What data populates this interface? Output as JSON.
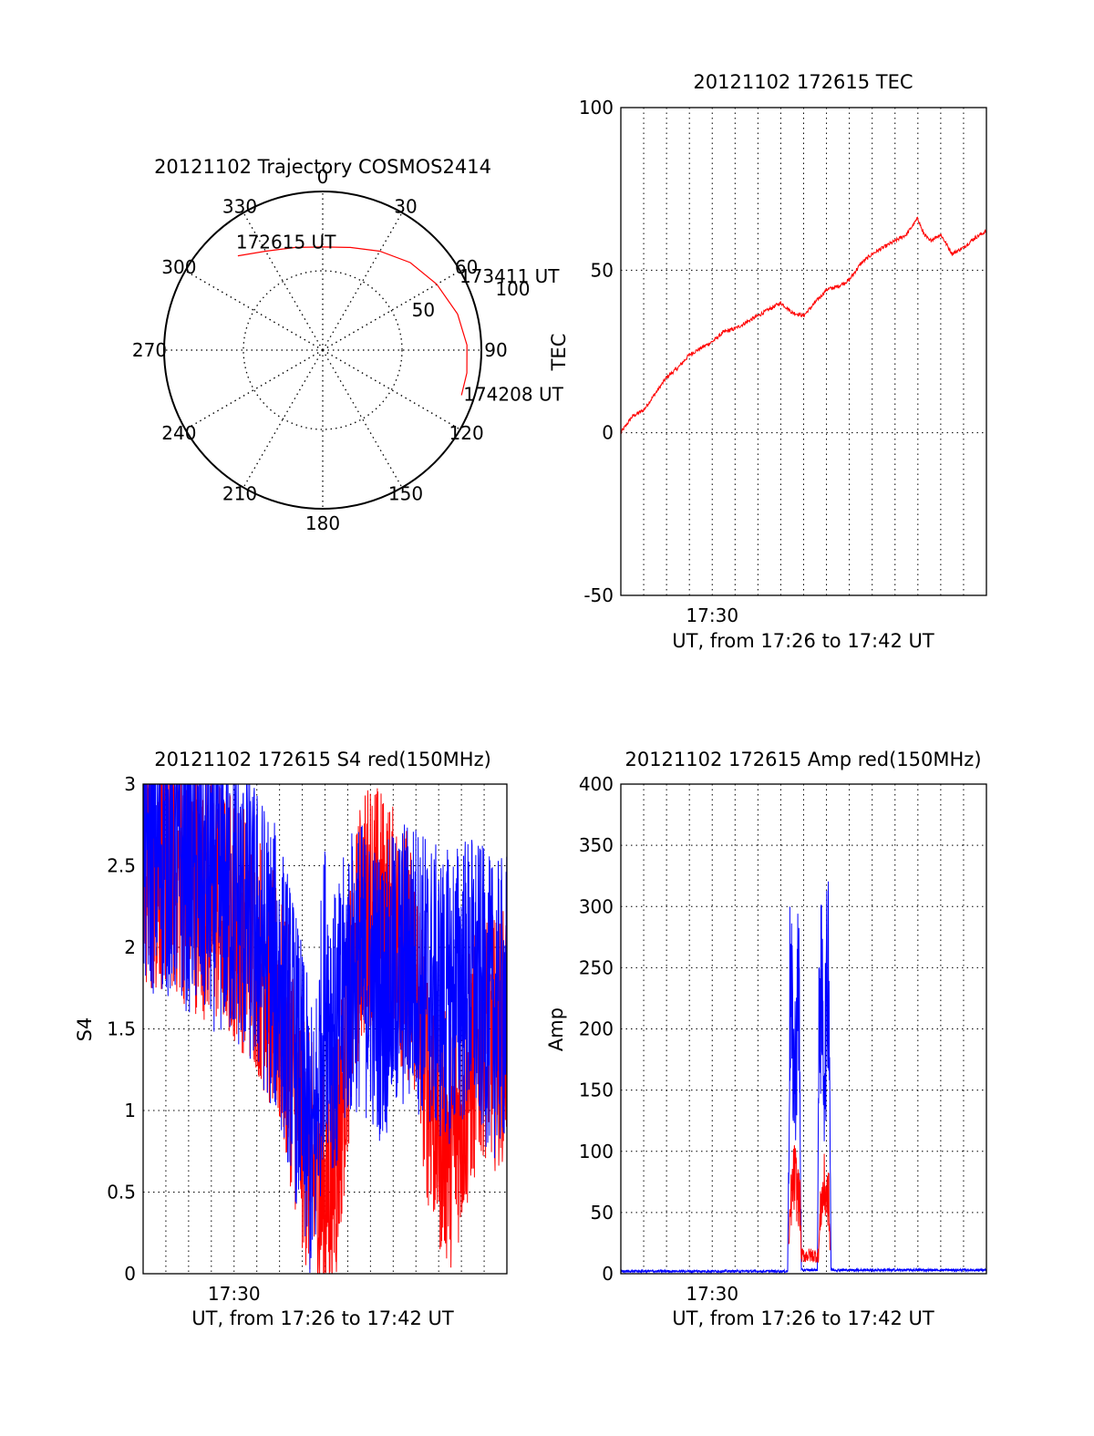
{
  "colors": {
    "axes": "#000000",
    "grid": "#000000",
    "red": "#ff0000",
    "blue": "#0000ff"
  },
  "chart_data": [
    {
      "id": "polar",
      "type": "scatter",
      "title": "20121102 Trajectory COSMOS2414",
      "angle_labels": [
        "0",
        "30",
        "60",
        "90",
        "120",
        "150",
        "180",
        "210",
        "240",
        "270",
        "300",
        "330"
      ],
      "radial_labels": [
        "50",
        "100"
      ],
      "rlim": [
        0,
        100
      ],
      "grid": true,
      "trajectory": {
        "color": "#ff0000",
        "points": [
          {
            "az": 318,
            "r": 80
          },
          {
            "az": 330,
            "r": 72
          },
          {
            "az": 345,
            "r": 67
          },
          {
            "az": 0,
            "r": 65
          },
          {
            "az": 15,
            "r": 67
          },
          {
            "az": 30,
            "r": 72
          },
          {
            "az": 45,
            "r": 78
          },
          {
            "az": 60,
            "r": 83
          },
          {
            "az": 75,
            "r": 88
          },
          {
            "az": 88,
            "r": 91
          },
          {
            "az": 99,
            "r": 92
          },
          {
            "az": 108,
            "r": 92
          }
        ],
        "labels": [
          {
            "text": "172615 UT",
            "point": 0
          },
          {
            "text": "173411 UT",
            "point": 6
          },
          {
            "text": "174208 UT",
            "point": 11
          }
        ]
      }
    },
    {
      "id": "tec",
      "type": "line",
      "title": "20121102 172615 TEC",
      "xlabel": "UT, from 17:26 to 17:42 UT",
      "ylabel": "TEC",
      "xlim": [
        0,
        16
      ],
      "ylim": [
        -50,
        100
      ],
      "yticks": [
        "-50",
        "0",
        "50",
        "100"
      ],
      "xticks": [
        {
          "x": 4,
          "label": "17:30"
        }
      ],
      "grid": true,
      "series": [
        {
          "color": "#ff0000",
          "noise": 0.6,
          "x": [
            0,
            0.5,
            1,
            1.5,
            2,
            2.5,
            3,
            3.5,
            4,
            4.5,
            5,
            5.5,
            6,
            6.5,
            7,
            7.5,
            8,
            8.5,
            9,
            9.5,
            10,
            10.5,
            11,
            11.5,
            12,
            12.5,
            13,
            13.2,
            13.5,
            14,
            14.5,
            15,
            15.5,
            16
          ],
          "y": [
            0,
            5,
            7,
            12,
            17,
            20,
            24,
            26,
            28,
            31,
            32,
            34,
            36,
            38,
            40,
            37,
            36,
            40,
            44,
            45,
            47,
            52,
            55,
            57,
            59,
            61,
            66,
            62,
            59,
            61,
            55,
            57,
            60,
            62
          ]
        }
      ]
    },
    {
      "id": "s4",
      "type": "line",
      "title": "20121102 172615 S4 red(150MHz)",
      "xlabel": "UT, from 17:26 to 17:42 UT",
      "ylabel": "S4",
      "xlim": [
        0,
        16
      ],
      "ylim": [
        0,
        3
      ],
      "yticks": [
        "0",
        "0.5",
        "1",
        "1.5",
        "2",
        "2.5",
        "3"
      ],
      "xticks": [
        {
          "x": 4,
          "label": "17:30"
        }
      ],
      "grid": true,
      "series": [
        {
          "color": "#ff0000",
          "noise": 0.6,
          "x": [
            0,
            1,
            2,
            3,
            4,
            5,
            6,
            6.5,
            7,
            7.5,
            8,
            8.5,
            9,
            9.5,
            10,
            10.5,
            11,
            11.5,
            12,
            12.5,
            13,
            13.5,
            14,
            14.5,
            15,
            15.5,
            16
          ],
          "y": [
            2.5,
            2.5,
            2.4,
            2.3,
            2.2,
            2.0,
            1.6,
            1.3,
            0.9,
            0.6,
            0.5,
            0.7,
            1.5,
            2.1,
            2.3,
            2.2,
            2.1,
            2.0,
            1.8,
            1.2,
            0.9,
            0.8,
            1.0,
            1.3,
            1.5,
            1.4,
            1.5
          ]
        },
        {
          "color": "#0000ff",
          "noise": 0.7,
          "x": [
            0,
            1,
            2,
            3,
            4,
            5,
            6,
            6.5,
            7,
            7.5,
            8,
            8.5,
            9,
            9.5,
            10,
            10.5,
            11,
            11.5,
            12,
            12.5,
            13,
            13.5,
            14,
            14.5,
            15,
            15.5,
            16
          ],
          "y": [
            2.6,
            2.6,
            2.5,
            2.4,
            2.3,
            2.1,
            1.8,
            1.5,
            1.1,
            0.7,
            1.8,
            1.4,
            1.8,
            1.9,
            1.8,
            1.7,
            1.8,
            1.9,
            1.9,
            1.8,
            1.7,
            1.7,
            1.8,
            1.8,
            1.7,
            1.6,
            1.7
          ]
        }
      ]
    },
    {
      "id": "amp",
      "type": "line",
      "title": "20121102 172615 Amp red(150MHz)",
      "xlabel": "UT, from 17:26 to 17:42 UT",
      "ylabel": "Amp",
      "xlim": [
        0,
        16
      ],
      "ylim": [
        0,
        400
      ],
      "yticks": [
        "0",
        "50",
        "100",
        "150",
        "200",
        "250",
        "300",
        "350",
        "400"
      ],
      "xticks": [
        {
          "x": 4,
          "label": "17:30"
        }
      ],
      "grid": true,
      "series": [
        {
          "color": "#0000ff",
          "noise": 0.4,
          "x": [
            0,
            7.3,
            7.4,
            7.6,
            7.8,
            7.9,
            8.6,
            8.7,
            8.9,
            9.1,
            9.2,
            16
          ],
          "y": [
            1,
            1,
            230,
            160,
            240,
            2,
            2,
            250,
            170,
            270,
            2,
            2
          ]
        },
        {
          "color": "#ff0000",
          "noise": 0.4,
          "x": [
            7.35,
            7.45,
            7.6,
            7.85,
            7.9,
            8.65,
            8.75,
            8.9,
            9.1,
            9.15
          ],
          "y": [
            20,
            60,
            80,
            55,
            15,
            15,
            55,
            70,
            60,
            20
          ]
        }
      ]
    }
  ]
}
